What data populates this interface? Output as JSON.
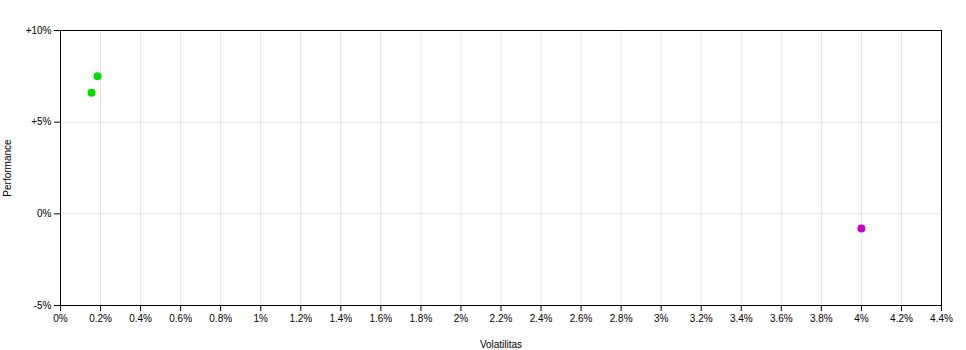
{
  "chart_data": {
    "type": "scatter",
    "xlabel": "Volatilitas",
    "ylabel": "Performance",
    "x": [
      0.00185,
      0.00155,
      0.04
    ],
    "values": [
      0.075,
      0.066,
      -0.008
    ],
    "colors": [
      "#00dd00",
      "#00dd00",
      "#cc00cc"
    ],
    "marker": "circle",
    "xlim": [
      0,
      0.044
    ],
    "ylim": [
      -0.05,
      0.1
    ],
    "xticks": [
      {
        "value": 0,
        "label": "0%"
      },
      {
        "value": 0.002,
        "label": "0.2%"
      },
      {
        "value": 0.004,
        "label": "0.4%"
      },
      {
        "value": 0.006,
        "label": "0.6%"
      },
      {
        "value": 0.008,
        "label": "0.8%"
      },
      {
        "value": 0.01,
        "label": "1%"
      },
      {
        "value": 0.012,
        "label": "1.2%"
      },
      {
        "value": 0.014,
        "label": "1.4%"
      },
      {
        "value": 0.016,
        "label": "1.6%"
      },
      {
        "value": 0.018,
        "label": "1.8%"
      },
      {
        "value": 0.02,
        "label": "2%"
      },
      {
        "value": 0.022,
        "label": "2.2%"
      },
      {
        "value": 0.024,
        "label": "2.4%"
      },
      {
        "value": 0.026,
        "label": "2.6%"
      },
      {
        "value": 0.028,
        "label": "2.8%"
      },
      {
        "value": 0.03,
        "label": "3%"
      },
      {
        "value": 0.032,
        "label": "3.2%"
      },
      {
        "value": 0.034,
        "label": "3.4%"
      },
      {
        "value": 0.036,
        "label": "3.6%"
      },
      {
        "value": 0.038,
        "label": "3.8%"
      },
      {
        "value": 0.04,
        "label": "4%"
      },
      {
        "value": 0.042,
        "label": "4.2%"
      },
      {
        "value": 0.044,
        "label": "4.4%"
      }
    ],
    "yticks": [
      {
        "value": -0.05,
        "label": "-5%"
      },
      {
        "value": 0,
        "label": "0%"
      },
      {
        "value": 0.05,
        "label": "+5%"
      },
      {
        "value": 0.1,
        "label": "+10%"
      }
    ],
    "grid": true
  }
}
